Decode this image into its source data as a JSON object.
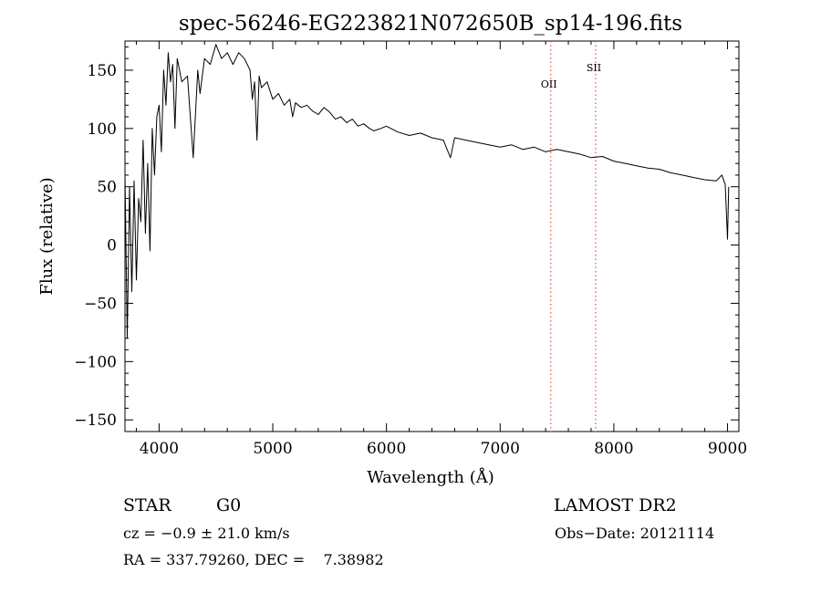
{
  "chart_data": {
    "type": "line",
    "title": "spec-56246-EG223821N072650B_sp14-196.fits",
    "xlabel": "Wavelength (Å)",
    "ylabel": "Flux (relative)",
    "xlim": [
      3700,
      9100
    ],
    "ylim": [
      -160,
      175
    ],
    "x_ticks": [
      4000,
      5000,
      6000,
      7000,
      8000,
      9000
    ],
    "y_ticks": [
      150,
      100,
      50,
      0,
      -50,
      -100,
      -150
    ],
    "x_tick_labels": [
      "4000",
      "5000",
      "6000",
      "7000",
      "8000",
      "9000"
    ],
    "y_tick_labels": [
      "150",
      "100",
      "50",
      "0",
      "−50",
      "−100",
      "−150"
    ],
    "grid": false,
    "series": [
      {
        "color": "#000000",
        "x": [
          3700,
          3720,
          3740,
          3760,
          3780,
          3800,
          3820,
          3840,
          3860,
          3880,
          3900,
          3920,
          3940,
          3960,
          3980,
          4000,
          4020,
          4040,
          4060,
          4080,
          4100,
          4120,
          4140,
          4160,
          4180,
          4200,
          4250,
          4300,
          4340,
          4360,
          4400,
          4450,
          4500,
          4550,
          4600,
          4650,
          4700,
          4750,
          4800,
          4820,
          4840,
          4861,
          4880,
          4900,
          4950,
          5000,
          5050,
          5100,
          5150,
          5175,
          5200,
          5250,
          5300,
          5350,
          5400,
          5450,
          5500,
          5550,
          5600,
          5650,
          5700,
          5750,
          5800,
          5850,
          5890,
          5950,
          6000,
          6100,
          6200,
          6300,
          6400,
          6500,
          6563,
          6600,
          6700,
          6800,
          6900,
          7000,
          7100,
          7200,
          7300,
          7400,
          7500,
          7600,
          7700,
          7800,
          7900,
          8000,
          8100,
          8200,
          8300,
          8400,
          8500,
          8600,
          8700,
          8800,
          8900,
          8950,
          8980,
          9000,
          9010
        ],
        "y": [
          60,
          -80,
          50,
          -40,
          55,
          -30,
          40,
          20,
          90,
          10,
          70,
          -5,
          100,
          60,
          110,
          120,
          80,
          150,
          120,
          165,
          140,
          155,
          100,
          160,
          150,
          140,
          145,
          75,
          150,
          130,
          160,
          155,
          172,
          160,
          165,
          155,
          165,
          160,
          150,
          125,
          140,
          90,
          145,
          135,
          140,
          125,
          130,
          120,
          125,
          110,
          122,
          118,
          120,
          115,
          112,
          118,
          114,
          108,
          110,
          105,
          108,
          102,
          104,
          100,
          98,
          100,
          102,
          97,
          94,
          96,
          92,
          90,
          75,
          92,
          90,
          88,
          86,
          84,
          86,
          82,
          84,
          80,
          82,
          80,
          78,
          75,
          76,
          72,
          70,
          68,
          66,
          65,
          62,
          60,
          58,
          56,
          55,
          60,
          52,
          5,
          50
        ]
      }
    ],
    "markers": [
      {
        "label": "OII",
        "x": 7445,
        "color": "#e05050"
      },
      {
        "label": "SII",
        "x": 7840,
        "color": "#e05050"
      }
    ]
  },
  "info": {
    "object_class": "STAR",
    "subclass": "G0",
    "survey": "LAMOST DR2",
    "velocity": "cz = −0.9 ± 21.0 km/s",
    "obs_date": "Obs−Date: 20121114",
    "coords": "RA = 337.79260, DEC =    7.38982"
  }
}
